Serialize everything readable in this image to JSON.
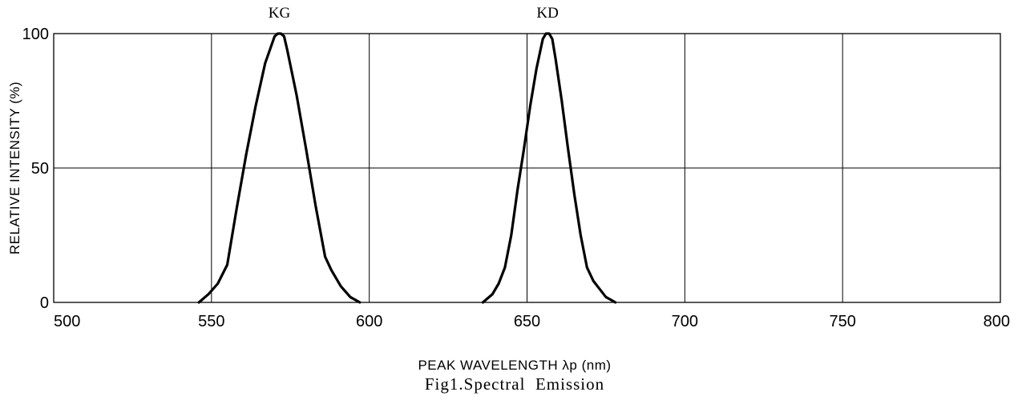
{
  "chart_data": {
    "type": "line",
    "title": "",
    "caption": "Fig1.Spectral  Emission",
    "xlabel": "PEAK WAVELENGTH λp (nm)",
    "ylabel": "RELATIVE INTENSITY (%)",
    "xlim": [
      500,
      800
    ],
    "ylim": [
      0,
      100
    ],
    "x_ticks": [
      500,
      550,
      600,
      650,
      700,
      750,
      800
    ],
    "y_ticks": [
      0,
      50,
      100
    ],
    "grid": true,
    "series": [
      {
        "name": "KG",
        "color": "#000000",
        "x": [
          546,
          549,
          552,
          555,
          558,
          561,
          564,
          567,
          570,
          571,
          572,
          573,
          574,
          577,
          580,
          583,
          586,
          588,
          591,
          594,
          597
        ],
        "y": [
          0,
          3,
          7,
          14,
          35,
          55,
          73,
          89,
          99,
          100,
          100,
          99,
          94,
          77,
          57,
          36,
          17,
          12,
          6,
          2,
          0
        ]
      },
      {
        "name": "KD",
        "color": "#000000",
        "x": [
          636,
          639,
          641,
          643,
          645,
          647,
          649,
          651,
          653,
          655,
          656,
          657,
          658,
          659,
          661,
          663,
          665,
          667,
          669,
          671,
          673,
          675,
          678
        ],
        "y": [
          0,
          3,
          7,
          13,
          25,
          42,
          57,
          73,
          87,
          98,
          100,
          100,
          98,
          91,
          75,
          57,
          40,
          25,
          13,
          8,
          5,
          2,
          0
        ]
      }
    ]
  }
}
